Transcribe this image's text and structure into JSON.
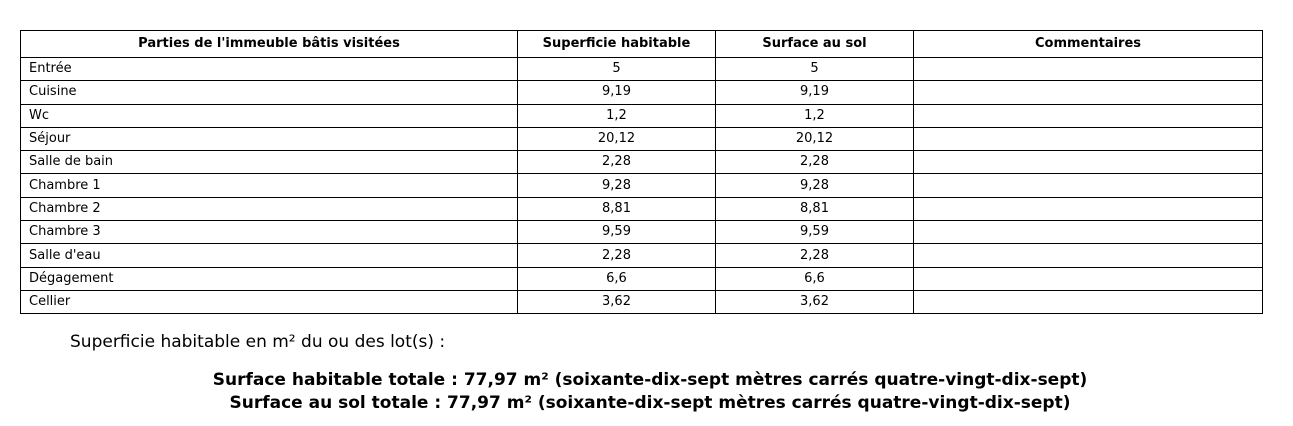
{
  "table": {
    "header": [
      "Parties de l'immeuble bâtis visitées",
      "Superficie habitable",
      "Surface au sol",
      "Commentaires"
    ],
    "rows": [
      [
        "Entrée",
        "5",
        "5"
      ],
      [
        "Cuisine",
        "9,19",
        "9,19"
      ],
      [
        "Wc",
        "1,2",
        "1,2"
      ],
      [
        "Séjour",
        "20,12",
        "20,12"
      ],
      [
        "Salle de bain",
        "2,28",
        "2,28"
      ],
      [
        "Chambre 1",
        "9,28",
        "9,28"
      ],
      [
        "Chambre 2",
        "8,81",
        "8,81"
      ],
      [
        "Chambre 3",
        "9,59",
        "9,59"
      ],
      [
        "Salle d'eau",
        "2,28",
        "2,28"
      ],
      [
        "Dégagement",
        "6,6",
        "6,6"
      ],
      [
        "Cellier",
        "3,62",
        "3,62"
      ]
    ]
  },
  "summary": {
    "intro": "Superficie habitable en m² du ou des lot(s) :",
    "totals": [
      "Surface habitable totale : 77,97 m² (soixante-dix-sept mètres carrés quatre-vingt-dix-sept)",
      "Surface au sol totale : 77,97 m² (soixante-dix-sept mètres carrés quatre-vingt-dix-sept)"
    ]
  }
}
